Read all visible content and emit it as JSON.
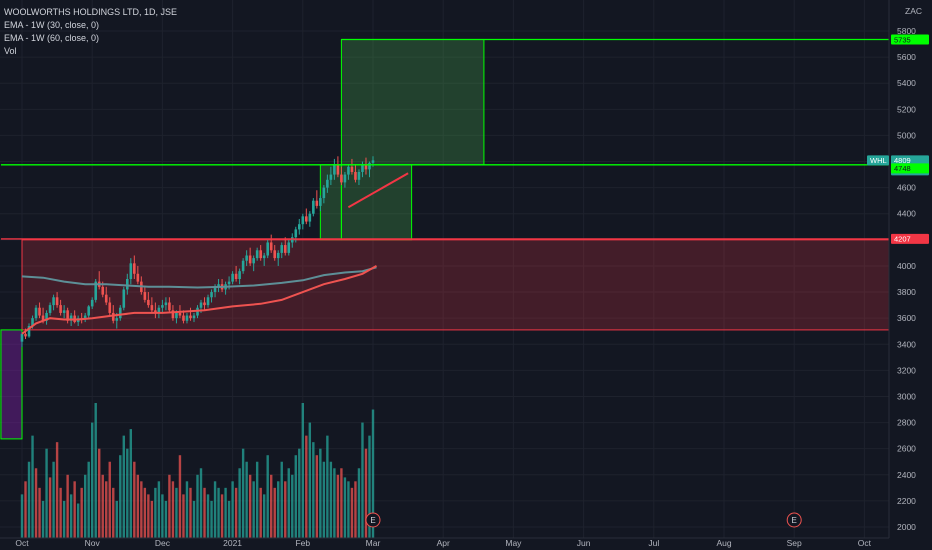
{
  "legend": {
    "title": "WOOLWORTHS HOLDINGS LTD, 1D, JSE",
    "ema30": "EMA - 1W (30, close, 0)",
    "ema60": "EMA - 1W (60, close, 0)",
    "vol": "Vol"
  },
  "currency": "ZAC",
  "colors": {
    "background": "#131722",
    "up": "#26a69a",
    "down": "#ef5350",
    "green_zone": "#00ff00",
    "red_zone": "#f23645",
    "ema_short": "#ef5350",
    "ema_long": "#5d8f97",
    "trendline": "#f23645"
  },
  "chart_data": {
    "type": "candlestick",
    "symbol": "WHL",
    "y_range": [
      1950,
      6000
    ],
    "y_ticks": [
      2000,
      2200,
      2400,
      2600,
      2800,
      3000,
      3200,
      3400,
      3600,
      3800,
      4000,
      4200,
      4400,
      4600,
      4800,
      5000,
      5200,
      5400,
      5600,
      5800
    ],
    "x_ticks": [
      "Oct",
      "Nov",
      "Dec",
      "2021",
      "Feb",
      "Mar",
      "Apr",
      "May",
      "Jun",
      "Jul",
      "Aug",
      "Sep",
      "Oct"
    ],
    "x_tick_months": [
      0,
      1,
      2,
      3,
      4,
      5,
      6,
      7,
      8,
      9,
      10,
      11,
      12
    ],
    "price_labels": [
      {
        "label": "5735",
        "value": 5735,
        "kind": "green"
      },
      {
        "label": "WHL",
        "value": 4809,
        "kind": "symbol"
      },
      {
        "label": "4809",
        "value": 4809,
        "kind": "price"
      },
      {
        "label": "03:24:45",
        "value": 4809,
        "kind": "timer"
      },
      {
        "label": "4748",
        "value": 4748,
        "kind": "green"
      },
      {
        "label": "4207",
        "value": 4207,
        "kind": "red"
      }
    ],
    "zones": [
      {
        "kind": "green",
        "x0": 4.55,
        "x1": 6.58,
        "y0": 4775,
        "y1": 5735
      },
      {
        "kind": "green",
        "x0": 4.25,
        "x1": 4.55,
        "y0": 4200,
        "y1": 4775
      },
      {
        "kind": "green",
        "x0": 4.55,
        "x1": 5.55,
        "y0": 4200,
        "y1": 4775
      },
      {
        "kind": "red",
        "x0": 0.0,
        "x1": 13.4,
        "y0": 3510,
        "y1": 4200
      },
      {
        "kind": "purple",
        "x0": -0.3,
        "x1": 0.0,
        "y0": 2675,
        "y1": 3510
      }
    ],
    "horizontal_lines": [
      {
        "kind": "green",
        "value": 5735,
        "x0": 4.55
      },
      {
        "kind": "green",
        "value": 4775,
        "x0": -0.3
      },
      {
        "kind": "red",
        "value": 4207,
        "x0": -0.3
      }
    ],
    "events": [
      {
        "label": "E",
        "x": 5.0
      },
      {
        "label": "E",
        "x": 11.0
      }
    ],
    "trendline": {
      "points": [
        [
          4.65,
          4450
        ],
        [
          5.5,
          4710
        ]
      ]
    },
    "ema_30": [
      [
        0.0,
        3480
      ],
      [
        0.2,
        3560
      ],
      [
        0.4,
        3600
      ],
      [
        0.6,
        3590
      ],
      [
        0.8,
        3590
      ],
      [
        1.0,
        3600
      ],
      [
        1.3,
        3620
      ],
      [
        1.6,
        3640
      ],
      [
        2.0,
        3640
      ],
      [
        2.3,
        3650
      ],
      [
        2.6,
        3660
      ],
      [
        3.0,
        3690
      ],
      [
        3.4,
        3710
      ],
      [
        3.7,
        3740
      ],
      [
        4.0,
        3800
      ],
      [
        4.3,
        3860
      ],
      [
        4.6,
        3900
      ],
      [
        4.85,
        3940
      ],
      [
        5.05,
        4000
      ]
    ],
    "ema_60": [
      [
        0.0,
        3920
      ],
      [
        0.3,
        3910
      ],
      [
        0.6,
        3880
      ],
      [
        0.9,
        3860
      ],
      [
        1.2,
        3860
      ],
      [
        1.5,
        3850
      ],
      [
        1.8,
        3840
      ],
      [
        2.1,
        3840
      ],
      [
        2.5,
        3835
      ],
      [
        2.9,
        3840
      ],
      [
        3.3,
        3850
      ],
      [
        3.7,
        3870
      ],
      [
        4.0,
        3890
      ],
      [
        4.3,
        3930
      ],
      [
        4.6,
        3950
      ],
      [
        4.85,
        3960
      ],
      [
        5.05,
        3990
      ]
    ],
    "candles": [
      [
        0.0,
        3420,
        3490,
        3380,
        3480
      ],
      [
        0.05,
        3480,
        3520,
        3440,
        3460
      ],
      [
        0.1,
        3460,
        3560,
        3450,
        3540
      ],
      [
        0.15,
        3540,
        3620,
        3520,
        3600
      ],
      [
        0.2,
        3600,
        3700,
        3580,
        3680
      ],
      [
        0.25,
        3680,
        3720,
        3600,
        3620
      ],
      [
        0.3,
        3620,
        3680,
        3560,
        3580
      ],
      [
        0.35,
        3580,
        3660,
        3550,
        3640
      ],
      [
        0.4,
        3640,
        3720,
        3620,
        3700
      ],
      [
        0.45,
        3700,
        3780,
        3660,
        3760
      ],
      [
        0.5,
        3760,
        3800,
        3680,
        3700
      ],
      [
        0.55,
        3700,
        3740,
        3620,
        3640
      ],
      [
        0.6,
        3640,
        3700,
        3600,
        3660
      ],
      [
        0.65,
        3660,
        3680,
        3560,
        3580
      ],
      [
        0.7,
        3580,
        3640,
        3540,
        3620
      ],
      [
        0.75,
        3620,
        3660,
        3560,
        3570
      ],
      [
        0.8,
        3570,
        3620,
        3540,
        3600
      ],
      [
        0.85,
        3600,
        3640,
        3560,
        3590
      ],
      [
        0.9,
        3590,
        3640,
        3570,
        3620
      ],
      [
        0.95,
        3620,
        3700,
        3600,
        3690
      ],
      [
        1.0,
        3690,
        3760,
        3670,
        3740
      ],
      [
        1.05,
        3740,
        3900,
        3720,
        3880
      ],
      [
        1.1,
        3880,
        3960,
        3820,
        3840
      ],
      [
        1.15,
        3840,
        3880,
        3760,
        3780
      ],
      [
        1.2,
        3780,
        3840,
        3700,
        3720
      ],
      [
        1.25,
        3720,
        3760,
        3620,
        3640
      ],
      [
        1.3,
        3640,
        3700,
        3560,
        3580
      ],
      [
        1.35,
        3580,
        3640,
        3520,
        3600
      ],
      [
        1.4,
        3600,
        3700,
        3580,
        3680
      ],
      [
        1.45,
        3680,
        3840,
        3660,
        3820
      ],
      [
        1.5,
        3820,
        3940,
        3780,
        3900
      ],
      [
        1.55,
        3900,
        4060,
        3860,
        4020
      ],
      [
        1.6,
        4020,
        4080,
        3900,
        3940
      ],
      [
        1.65,
        3940,
        4000,
        3860,
        3880
      ],
      [
        1.7,
        3880,
        3920,
        3780,
        3800
      ],
      [
        1.75,
        3800,
        3840,
        3720,
        3740
      ],
      [
        1.8,
        3740,
        3800,
        3680,
        3700
      ],
      [
        1.85,
        3700,
        3760,
        3640,
        3660
      ],
      [
        1.9,
        3660,
        3720,
        3600,
        3640
      ],
      [
        1.95,
        3640,
        3700,
        3600,
        3680
      ],
      [
        2.0,
        3680,
        3740,
        3640,
        3700
      ],
      [
        2.05,
        3700,
        3760,
        3660,
        3720
      ],
      [
        2.1,
        3720,
        3760,
        3640,
        3660
      ],
      [
        2.15,
        3660,
        3700,
        3580,
        3600
      ],
      [
        2.2,
        3600,
        3660,
        3560,
        3640
      ],
      [
        2.25,
        3640,
        3700,
        3600,
        3620
      ],
      [
        2.3,
        3620,
        3660,
        3560,
        3580
      ],
      [
        2.35,
        3580,
        3640,
        3560,
        3620
      ],
      [
        2.4,
        3620,
        3680,
        3580,
        3600
      ],
      [
        2.45,
        3600,
        3640,
        3570,
        3620
      ],
      [
        2.5,
        3620,
        3700,
        3600,
        3680
      ],
      [
        2.55,
        3680,
        3740,
        3640,
        3720
      ],
      [
        2.6,
        3720,
        3760,
        3660,
        3700
      ],
      [
        2.65,
        3700,
        3780,
        3680,
        3760
      ],
      [
        2.7,
        3760,
        3820,
        3720,
        3800
      ],
      [
        2.75,
        3800,
        3860,
        3760,
        3840
      ],
      [
        2.8,
        3840,
        3900,
        3800,
        3860
      ],
      [
        2.85,
        3860,
        3900,
        3800,
        3820
      ],
      [
        2.9,
        3820,
        3880,
        3780,
        3860
      ],
      [
        2.95,
        3860,
        3920,
        3820,
        3880
      ],
      [
        3.0,
        3880,
        3960,
        3860,
        3940
      ],
      [
        3.05,
        3940,
        4000,
        3880,
        3900
      ],
      [
        3.1,
        3900,
        3980,
        3860,
        3960
      ],
      [
        3.15,
        3960,
        4060,
        3940,
        4040
      ],
      [
        3.2,
        4040,
        4120,
        4000,
        4080
      ],
      [
        3.25,
        4080,
        4140,
        4000,
        4020
      ],
      [
        3.3,
        4020,
        4080,
        3960,
        4060
      ],
      [
        3.35,
        4060,
        4140,
        4040,
        4120
      ],
      [
        3.4,
        4120,
        4160,
        4040,
        4060
      ],
      [
        3.45,
        4060,
        4100,
        4000,
        4080
      ],
      [
        3.5,
        4080,
        4200,
        4060,
        4180
      ],
      [
        3.55,
        4180,
        4240,
        4100,
        4120
      ],
      [
        3.6,
        4120,
        4160,
        4040,
        4060
      ],
      [
        3.65,
        4060,
        4120,
        4000,
        4100
      ],
      [
        3.7,
        4100,
        4180,
        4060,
        4160
      ],
      [
        3.75,
        4160,
        4220,
        4080,
        4100
      ],
      [
        3.8,
        4100,
        4200,
        4080,
        4180
      ],
      [
        3.85,
        4180,
        4250,
        4140,
        4220
      ],
      [
        3.9,
        4220,
        4300,
        4180,
        4280
      ],
      [
        3.95,
        4280,
        4360,
        4240,
        4320
      ],
      [
        4.0,
        4320,
        4400,
        4280,
        4380
      ],
      [
        4.05,
        4380,
        4440,
        4320,
        4340
      ],
      [
        4.1,
        4340,
        4420,
        4300,
        4400
      ],
      [
        4.15,
        4400,
        4520,
        4380,
        4500
      ],
      [
        4.2,
        4500,
        4580,
        4440,
        4460
      ],
      [
        4.25,
        4460,
        4540,
        4420,
        4520
      ],
      [
        4.3,
        4520,
        4620,
        4480,
        4600
      ],
      [
        4.35,
        4600,
        4700,
        4560,
        4660
      ],
      [
        4.4,
        4660,
        4760,
        4620,
        4700
      ],
      [
        4.45,
        4700,
        4820,
        4660,
        4780
      ],
      [
        4.5,
        4780,
        4840,
        4680,
        4700
      ],
      [
        4.55,
        4700,
        4760,
        4620,
        4640
      ],
      [
        4.6,
        4640,
        4720,
        4600,
        4700
      ],
      [
        4.65,
        4700,
        4780,
        4660,
        4760
      ],
      [
        4.7,
        4760,
        4820,
        4700,
        4720
      ],
      [
        4.75,
        4720,
        4780,
        4640,
        4660
      ],
      [
        4.8,
        4660,
        4740,
        4620,
        4720
      ],
      [
        4.85,
        4720,
        4800,
        4680,
        4780
      ],
      [
        4.9,
        4780,
        4830,
        4700,
        4740
      ],
      [
        4.95,
        4740,
        4800,
        4680,
        4790
      ],
      [
        5.0,
        4790,
        4840,
        4760,
        4809
      ]
    ],
    "volumes": [
      [
        0.0,
        2250,
        "up"
      ],
      [
        0.05,
        2350,
        "down"
      ],
      [
        0.1,
        2500,
        "up"
      ],
      [
        0.15,
        2700,
        "up"
      ],
      [
        0.2,
        2450,
        "down"
      ],
      [
        0.25,
        2300,
        "down"
      ],
      [
        0.3,
        2200,
        "up"
      ],
      [
        0.35,
        2600,
        "up"
      ],
      [
        0.4,
        2380,
        "down"
      ],
      [
        0.45,
        2500,
        "up"
      ],
      [
        0.5,
        2650,
        "down"
      ],
      [
        0.55,
        2300,
        "down"
      ],
      [
        0.6,
        2200,
        "up"
      ],
      [
        0.65,
        2400,
        "down"
      ],
      [
        0.7,
        2250,
        "up"
      ],
      [
        0.75,
        2350,
        "down"
      ],
      [
        0.8,
        2180,
        "up"
      ],
      [
        0.85,
        2300,
        "down"
      ],
      [
        0.9,
        2400,
        "up"
      ],
      [
        0.95,
        2500,
        "up"
      ],
      [
        1.0,
        2800,
        "up"
      ],
      [
        1.05,
        2950,
        "up"
      ],
      [
        1.1,
        2600,
        "down"
      ],
      [
        1.15,
        2400,
        "down"
      ],
      [
        1.2,
        2350,
        "down"
      ],
      [
        1.25,
        2500,
        "down"
      ],
      [
        1.3,
        2300,
        "down"
      ],
      [
        1.35,
        2200,
        "up"
      ],
      [
        1.4,
        2550,
        "up"
      ],
      [
        1.45,
        2700,
        "up"
      ],
      [
        1.5,
        2600,
        "up"
      ],
      [
        1.55,
        2750,
        "up"
      ],
      [
        1.6,
        2500,
        "down"
      ],
      [
        1.65,
        2400,
        "down"
      ],
      [
        1.7,
        2350,
        "down"
      ],
      [
        1.75,
        2300,
        "down"
      ],
      [
        1.8,
        2250,
        "down"
      ],
      [
        1.85,
        2200,
        "down"
      ],
      [
        1.9,
        2300,
        "up"
      ],
      [
        1.95,
        2350,
        "up"
      ],
      [
        2.0,
        2250,
        "up"
      ],
      [
        2.05,
        2200,
        "up"
      ],
      [
        2.1,
        2400,
        "down"
      ],
      [
        2.15,
        2350,
        "down"
      ],
      [
        2.2,
        2300,
        "up"
      ],
      [
        2.25,
        2550,
        "down"
      ],
      [
        2.3,
        2250,
        "down"
      ],
      [
        2.35,
        2350,
        "up"
      ],
      [
        2.4,
        2300,
        "down"
      ],
      [
        2.45,
        2200,
        "up"
      ],
      [
        2.5,
        2400,
        "up"
      ],
      [
        2.55,
        2450,
        "up"
      ],
      [
        2.6,
        2300,
        "down"
      ],
      [
        2.65,
        2250,
        "up"
      ],
      [
        2.7,
        2200,
        "up"
      ],
      [
        2.75,
        2350,
        "up"
      ],
      [
        2.8,
        2300,
        "up"
      ],
      [
        2.85,
        2250,
        "down"
      ],
      [
        2.9,
        2300,
        "up"
      ],
      [
        2.95,
        2200,
        "up"
      ],
      [
        3.0,
        2350,
        "up"
      ],
      [
        3.05,
        2300,
        "down"
      ],
      [
        3.1,
        2450,
        "up"
      ],
      [
        3.15,
        2600,
        "up"
      ],
      [
        3.2,
        2500,
        "up"
      ],
      [
        3.25,
        2400,
        "down"
      ],
      [
        3.3,
        2350,
        "up"
      ],
      [
        3.35,
        2500,
        "up"
      ],
      [
        3.4,
        2300,
        "down"
      ],
      [
        3.45,
        2250,
        "up"
      ],
      [
        3.5,
        2550,
        "up"
      ],
      [
        3.55,
        2400,
        "down"
      ],
      [
        3.6,
        2300,
        "down"
      ],
      [
        3.65,
        2350,
        "up"
      ],
      [
        3.7,
        2500,
        "up"
      ],
      [
        3.75,
        2350,
        "down"
      ],
      [
        3.8,
        2450,
        "up"
      ],
      [
        3.85,
        2400,
        "up"
      ],
      [
        3.9,
        2550,
        "up"
      ],
      [
        3.95,
        2600,
        "up"
      ],
      [
        4.0,
        2950,
        "up"
      ],
      [
        4.05,
        2700,
        "down"
      ],
      [
        4.1,
        2800,
        "up"
      ],
      [
        4.15,
        2650,
        "up"
      ],
      [
        4.2,
        2550,
        "down"
      ],
      [
        4.25,
        2600,
        "up"
      ],
      [
        4.3,
        2500,
        "up"
      ],
      [
        4.35,
        2700,
        "up"
      ],
      [
        4.4,
        2500,
        "up"
      ],
      [
        4.45,
        2450,
        "up"
      ],
      [
        4.5,
        2400,
        "down"
      ],
      [
        4.55,
        2450,
        "down"
      ],
      [
        4.6,
        2380,
        "up"
      ],
      [
        4.65,
        2350,
        "up"
      ],
      [
        4.7,
        2300,
        "down"
      ],
      [
        4.75,
        2350,
        "down"
      ],
      [
        4.8,
        2450,
        "up"
      ],
      [
        4.85,
        2800,
        "up"
      ],
      [
        4.9,
        2600,
        "down"
      ],
      [
        4.95,
        2700,
        "up"
      ],
      [
        5.0,
        2900,
        "up"
      ]
    ]
  }
}
